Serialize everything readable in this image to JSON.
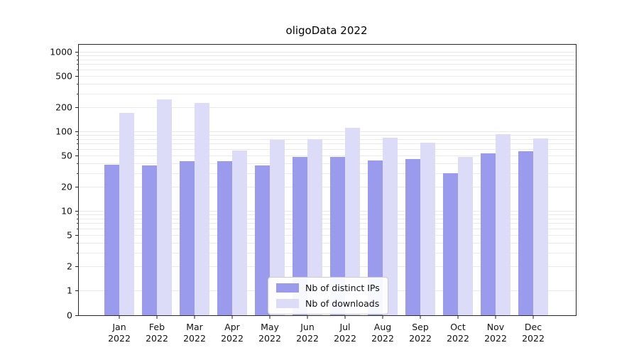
{
  "title": "oligoData 2022",
  "chart_data": {
    "type": "bar",
    "title": "oligoData 2022",
    "xlabel": "",
    "ylabel": "",
    "yscale": "symlog",
    "grid": true,
    "legend_position": "lower center",
    "year_label": "2022",
    "categories": [
      "Jan",
      "Feb",
      "Mar",
      "Apr",
      "May",
      "Jun",
      "Jul",
      "Aug",
      "Sep",
      "Oct",
      "Nov",
      "Dec"
    ],
    "yticks": [
      0,
      1,
      2,
      5,
      10,
      20,
      50,
      100,
      200,
      500,
      1000
    ],
    "ylim": [
      0,
      1200
    ],
    "series": [
      {
        "name": "Nb of distinct IPs",
        "color": "#9b9bee",
        "values": [
          38,
          37,
          42,
          42,
          37,
          48,
          48,
          43,
          45,
          30,
          53,
          56
        ]
      },
      {
        "name": "Nb of downloads",
        "color": "#dcdcf8",
        "values": [
          170,
          250,
          230,
          57,
          78,
          80,
          110,
          83,
          72,
          48,
          92,
          82
        ]
      }
    ]
  }
}
